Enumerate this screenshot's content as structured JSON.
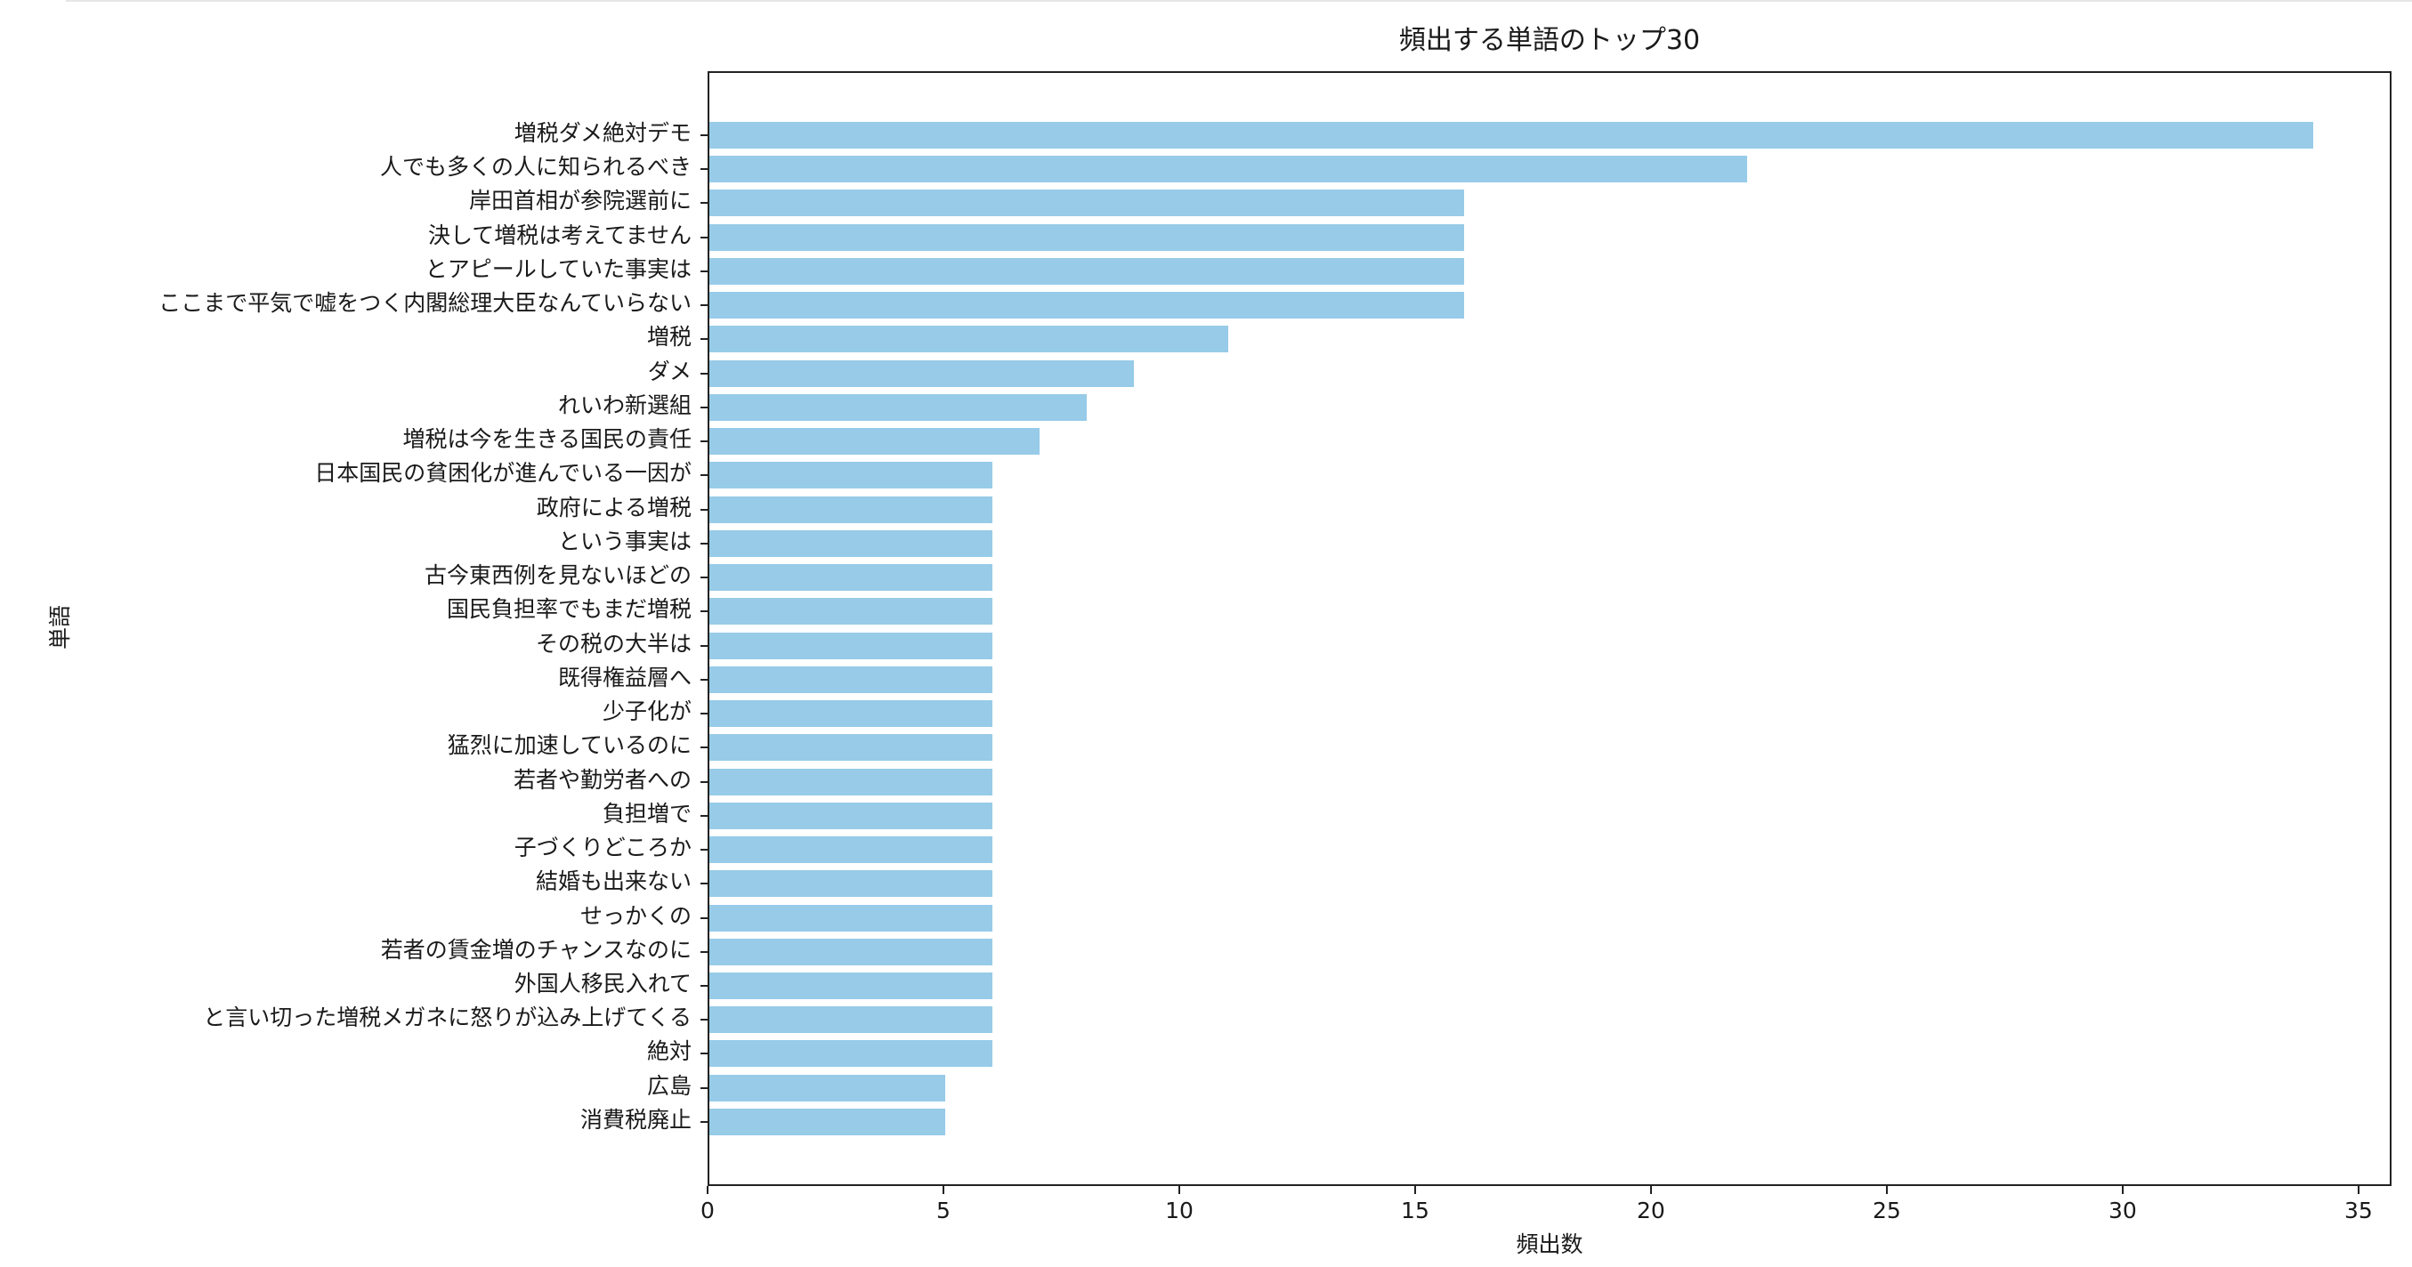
{
  "chart_data": {
    "type": "bar",
    "orientation": "horizontal",
    "title": "頻出する単語のトップ30",
    "xlabel": "頻出数",
    "ylabel": "単語",
    "xlim": [
      0,
      35.7
    ],
    "xticks": [
      0,
      5,
      10,
      15,
      20,
      25,
      30,
      35
    ],
    "grid": false,
    "legend": null,
    "bar_color": "#97cbe8",
    "categories": [
      "増税ダメ絶対デモ",
      "人でも多くの人に知られるべき",
      "岸田首相が参院選前に",
      "決して増税は考えてません",
      "とアピールしていた事実は",
      "ここまで平気で嘘をつく内閣総理大臣なんていらない",
      "増税",
      "ダメ",
      "れいわ新選組",
      "増税は今を生きる国民の責任",
      "日本国民の貧困化が進んでいる一因が",
      "政府による増税",
      "という事実は",
      "古今東西例を見ないほどの",
      "国民負担率でもまだ増税",
      "その税の大半は",
      "既得権益層へ",
      "少子化が",
      "猛烈に加速しているのに",
      "若者や勤労者への",
      "負担増で",
      "子づくりどころか",
      "結婚も出来ない",
      "せっかくの",
      "若者の賃金増のチャンスなのに",
      "外国人移民入れて",
      "と言い切った増税メガネに怒りが込み上げてくる",
      "絶対",
      "広島",
      "消費税廃止"
    ],
    "values": [
      34,
      22,
      16,
      16,
      16,
      16,
      11,
      9,
      8,
      7,
      6,
      6,
      6,
      6,
      6,
      6,
      6,
      6,
      6,
      6,
      6,
      6,
      6,
      6,
      6,
      6,
      6,
      6,
      5,
      5
    ]
  }
}
